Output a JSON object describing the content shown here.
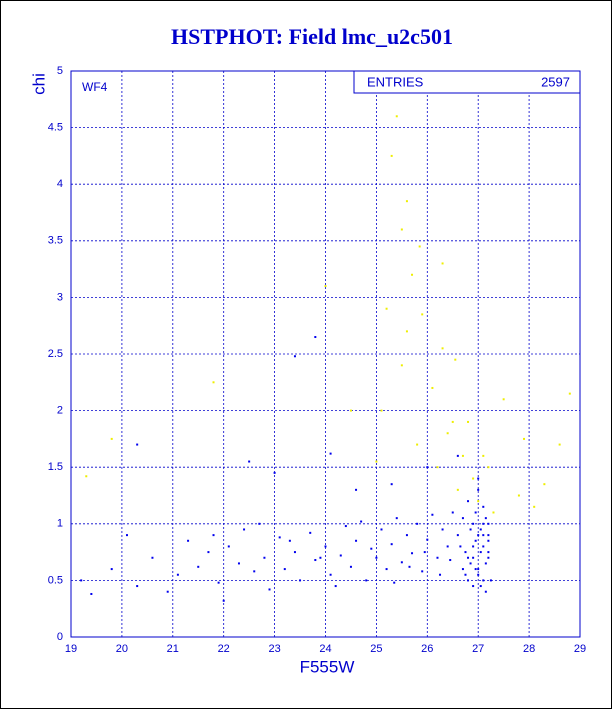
{
  "chart_data": {
    "type": "scatter",
    "title": "HSTPHOT: Field lmc_u2c501",
    "xlabel": "F555W",
    "ylabel": "chi",
    "annotation": "WF4",
    "stats_label": "ENTRIES",
    "entries": 2597,
    "xlim": [
      19,
      29
    ],
    "ylim": [
      0,
      5
    ],
    "xticks": [
      19,
      20,
      21,
      22,
      23,
      24,
      25,
      26,
      27,
      28,
      29
    ],
    "yticks": [
      0,
      0.5,
      1,
      1.5,
      2,
      2.5,
      3,
      3.5,
      4,
      4.5,
      5
    ],
    "grid": true,
    "series": [
      {
        "color": "#0000ee",
        "x": [
          26.7,
          26.8,
          26.9,
          27.0,
          27.1,
          27.2,
          26.75,
          26.85,
          26.95,
          27.05,
          27.15,
          27.25,
          26.7,
          26.8,
          26.9,
          27.0,
          27.1,
          27.2,
          26.65,
          26.9,
          27.0,
          27.1,
          27.2,
          26.8,
          26.95,
          27.05,
          27.15,
          26.6,
          26.85,
          27.0,
          27.1,
          27.2,
          26.9,
          27.05,
          26.75,
          27.15,
          27.0,
          26.95,
          27.1,
          27.2,
          19.2,
          19.4,
          19.8,
          20.1,
          20.3,
          20.6,
          20.9,
          21.1,
          21.3,
          21.5,
          21.7,
          21.9,
          22.0,
          22.1,
          22.3,
          22.4,
          22.6,
          22.8,
          22.9,
          23.1,
          23.2,
          23.4,
          23.5,
          23.7,
          23.8,
          24.0,
          24.1,
          24.3,
          24.4,
          24.5,
          24.6,
          24.8,
          24.9,
          25.0,
          25.1,
          25.2,
          25.3,
          25.4,
          25.5,
          25.6,
          25.7,
          25.8,
          25.9,
          26.0,
          26.1,
          26.2,
          26.3,
          26.4,
          26.5,
          25.35,
          25.65,
          25.95,
          26.25,
          24.7,
          24.2,
          23.9,
          23.3,
          22.7,
          21.8,
          26.45,
          20.3,
          22.5,
          23.4,
          23.8,
          24.1,
          23.0,
          26.0,
          25.3,
          24.6,
          26.6
        ],
        "y": [
          0.6,
          0.7,
          0.8,
          0.9,
          1.0,
          0.85,
          0.55,
          0.95,
          1.1,
          0.75,
          0.65,
          0.5,
          1.05,
          1.2,
          0.45,
          0.6,
          0.9,
          1.0,
          0.8,
          0.7,
          1.3,
          1.15,
          0.75,
          0.5,
          0.85,
          0.95,
          0.4,
          0.9,
          0.65,
          0.55,
          0.8,
          0.7,
          1.0,
          0.45,
          0.75,
          1.05,
          1.4,
          0.6,
          0.5,
          0.9,
          0.5,
          0.38,
          0.6,
          0.9,
          0.45,
          0.7,
          0.4,
          0.55,
          0.85,
          0.62,
          0.75,
          0.48,
          0.32,
          0.8,
          0.65,
          0.95,
          0.58,
          0.7,
          0.42,
          0.88,
          0.6,
          0.75,
          0.5,
          0.92,
          0.68,
          0.8,
          0.55,
          0.72,
          0.98,
          0.62,
          0.85,
          0.5,
          0.78,
          0.7,
          0.95,
          0.6,
          0.82,
          1.05,
          0.66,
          0.9,
          0.74,
          1.0,
          0.58,
          0.86,
          1.08,
          0.7,
          0.95,
          0.8,
          1.1,
          0.48,
          0.62,
          0.75,
          0.55,
          1.02,
          0.45,
          0.7,
          0.85,
          1.0,
          0.9,
          0.68,
          1.7,
          1.55,
          2.48,
          2.65,
          1.62,
          1.45,
          1.5,
          1.35,
          1.3,
          1.6
        ]
      },
      {
        "color": "#eeee00",
        "x": [
          25.4,
          25.5,
          25.3,
          25.6,
          25.2,
          25.7,
          25.5,
          26.3,
          25.9,
          25.1,
          25.8,
          26.1,
          26.5,
          26.7,
          26.4,
          26.9,
          27.2,
          27.5,
          27.8,
          28.3,
          28.6,
          28.8,
          26.2,
          25.6,
          25.0,
          26.6,
          27.0,
          27.3,
          27.9,
          28.1,
          24.0,
          21.8,
          19.8,
          19.3,
          26.8,
          26.3,
          25.85,
          26.55,
          27.1,
          24.5
        ],
        "y": [
          4.6,
          3.6,
          4.25,
          3.85,
          2.9,
          3.2,
          2.4,
          2.55,
          2.85,
          2.0,
          1.7,
          2.2,
          1.9,
          1.6,
          1.8,
          1.4,
          1.5,
          2.1,
          1.25,
          1.35,
          1.7,
          2.15,
          1.5,
          2.7,
          1.55,
          1.3,
          1.2,
          1.1,
          1.75,
          1.15,
          3.1,
          2.25,
          1.75,
          1.42,
          1.9,
          3.3,
          3.45,
          2.45,
          1.6,
          2.0
        ]
      }
    ]
  }
}
